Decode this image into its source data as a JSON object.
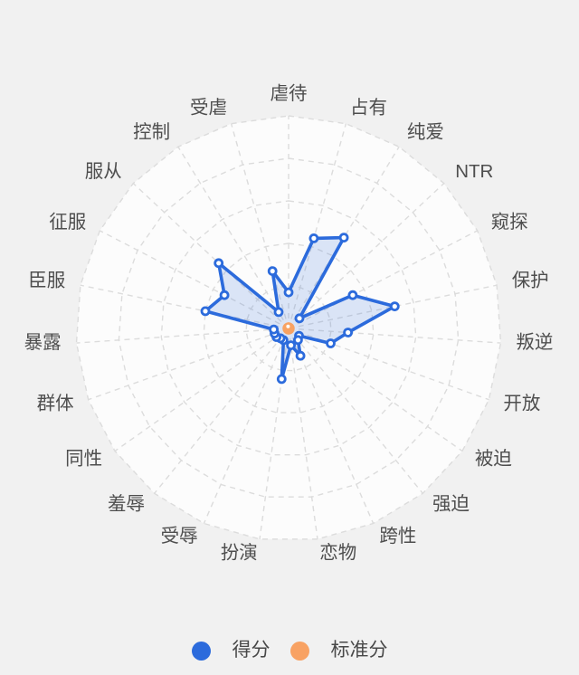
{
  "page": {
    "background": "#f1f1f1"
  },
  "chart_data": {
    "type": "radar",
    "title": "",
    "categories": [
      "虐待",
      "占有",
      "纯爱",
      "NTR",
      "窥探",
      "保护",
      "叛逆",
      "开放",
      "被迫",
      "强迫",
      "跨性",
      "恋物",
      "扮演",
      "受辱",
      "羞辱",
      "同性",
      "群体",
      "暴露",
      "臣服",
      "征服",
      "服从",
      "控制",
      "受虐"
    ],
    "series": [
      {
        "name": "得分",
        "color": "#2c6bdc",
        "fill": "rgba(44,107,220,0.16)",
        "values": [
          17,
          44,
          50,
          7,
          34,
          51,
          28,
          21,
          6,
          7,
          14,
          8,
          24,
          6,
          6,
          7,
          7,
          7,
          40,
          34,
          45,
          9,
          28
        ]
      },
      {
        "name": "标准分",
        "color": "#f8a263",
        "fill": "rgba(248,162,99,0.25)",
        "values": [
          1,
          1,
          1,
          1,
          1,
          1,
          1,
          1,
          1,
          1,
          1,
          1,
          1,
          1,
          1,
          1,
          1,
          1,
          1,
          1,
          1,
          1,
          1
        ]
      }
    ],
    "max": 100,
    "splits": 5,
    "axis_count": 23,
    "grid_style": "dashed",
    "grid_color": "#dcdcdc",
    "disc_color": "#fcfcfc",
    "axis_label_color": "#4e4e4e",
    "legend_position": "bottom"
  },
  "legend": {
    "items": [
      {
        "label": "得分",
        "color": "#2c6bdc"
      },
      {
        "label": "标准分",
        "color": "#f8a263"
      }
    ]
  }
}
